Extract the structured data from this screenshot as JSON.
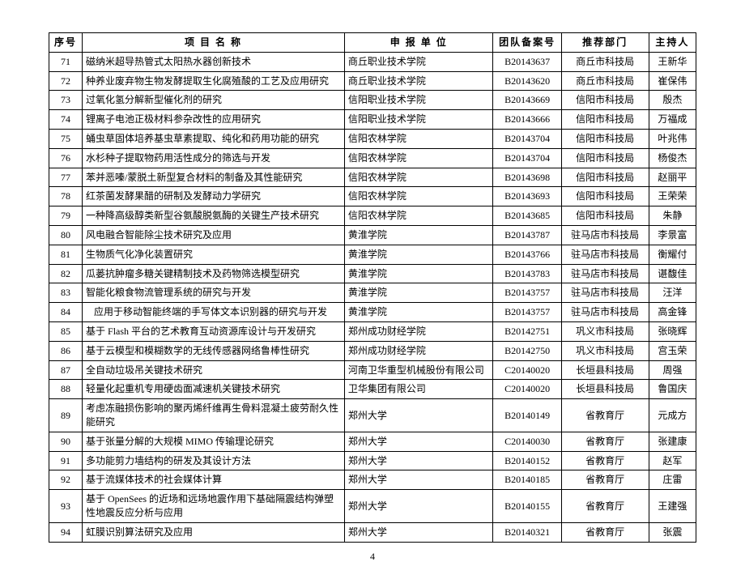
{
  "columns": [
    "序号",
    "项 目 名 称",
    "申 报 单 位",
    "团队备案号",
    "推荐部门",
    "主持人"
  ],
  "rows": [
    [
      "71",
      "磁纳米超导热管式太阳热水器创新技术",
      "商丘职业技术学院",
      "B20143637",
      "商丘市科技局",
      "王新华"
    ],
    [
      "72",
      "种养业废弃物生物发酵提取生化腐殖酸的工艺及应用研究",
      "商丘职业技术学院",
      "B20143620",
      "商丘市科技局",
      "崔保伟"
    ],
    [
      "73",
      "过氧化氢分解新型催化剂的研究",
      "信阳职业技术学院",
      "B20143669",
      "信阳市科技局",
      "殷杰"
    ],
    [
      "74",
      "锂离子电池正极材料参杂改性的应用研究",
      "信阳职业技术学院",
      "B20143666",
      "信阳市科技局",
      "万福成"
    ],
    [
      "75",
      "蛹虫草固体培养基虫草素提取、纯化和药用功能的研究",
      "信阳农林学院",
      "B20143704",
      "信阳市科技局",
      "叶兆伟"
    ],
    [
      "76",
      "水杉种子提取物药用活性成分的筛选与开发",
      "信阳农林学院",
      "B20143704",
      "信阳市科技局",
      "杨俊杰"
    ],
    [
      "77",
      "苯并恶嗪/蒙脱土新型复合材料的制备及其性能研究",
      "信阳农林学院",
      "B20143698",
      "信阳市科技局",
      "赵丽平"
    ],
    [
      "78",
      "红茶菌发酵果醋的研制及发酵动力学研究",
      "信阳农林学院",
      "B20143693",
      "信阳市科技局",
      "王荣荣"
    ],
    [
      "79",
      "一种降高级醇类新型谷氨酸脱氨酶的关键生产技术研究",
      "信阳农林学院",
      "B20143685",
      "信阳市科技局",
      "朱静"
    ],
    [
      "80",
      "风电融合智能除尘技术研究及应用",
      "黄淮学院",
      "B20143787",
      "驻马店市科技局",
      "李景富"
    ],
    [
      "81",
      "生物质气化净化装置研究",
      "黄淮学院",
      "B20143766",
      "驻马店市科技局",
      "衡耀付"
    ],
    [
      "82",
      "瓜蒌抗肿瘤多糖关键精制技术及药物筛选模型研究",
      "黄淮学院",
      "B20143783",
      "驻马店市科技局",
      "谌馥佳"
    ],
    [
      "83",
      "智能化粮食物流管理系统的研究与开发",
      "黄淮学院",
      "B20143757",
      "驻马店市科技局",
      "汪洋"
    ],
    [
      "84",
      "应用于移动智能终端的手写体文本识别器的研究与开发",
      "黄淮学院",
      "B20143757",
      "驻马店市科技局",
      "高金锋"
    ],
    [
      "85",
      "基于 Flash 平台的艺术教育互动资源库设计与开发研究",
      "郑州成功财经学院",
      "B20142751",
      "巩义市科技局",
      "张晓辉"
    ],
    [
      "86",
      "基于云模型和模糊数学的无线传感器网络鲁棒性研究",
      "郑州成功财经学院",
      "B20142750",
      "巩义市科技局",
      "宫玉荣"
    ],
    [
      "87",
      "全自动垃圾吊关键技术研究",
      "河南卫华重型机械股份有限公司",
      "C20140020",
      "长垣县科技局",
      "周强"
    ],
    [
      "88",
      "轻量化起重机专用硬齿面减速机关键技术研究",
      "卫华集团有限公司",
      "C20140020",
      "长垣县科技局",
      "鲁国庆"
    ],
    [
      "89",
      "考虑冻融损伤影响的聚丙烯纤维再生骨料混凝土疲劳耐久性能研究",
      "郑州大学",
      "B20140149",
      "省教育厅",
      "元成方"
    ],
    [
      "90",
      "基于张量分解的大规模 MIMO 传输理论研究",
      "郑州大学",
      "C20140030",
      "省教育厅",
      "张建康"
    ],
    [
      "91",
      "多功能剪力墙结构的研发及其设计方法",
      "郑州大学",
      "B20140152",
      "省教育厅",
      "赵军"
    ],
    [
      "92",
      "基于流媒体技术的社会媒体计算",
      "郑州大学",
      "B20140185",
      "省教育厅",
      "庄雷"
    ],
    [
      "93",
      "基于 OpenSees 的近场和远场地震作用下基础隔震结构弹塑性地震反应分析与应用",
      "郑州大学",
      "B20140155",
      "省教育厅",
      "王建强"
    ],
    [
      "94",
      "虹膜识别算法研究及应用",
      "郑州大学",
      "B20140321",
      "省教育厅",
      "张震"
    ]
  ],
  "indent_rows": [
    13
  ],
  "page_number": "4"
}
